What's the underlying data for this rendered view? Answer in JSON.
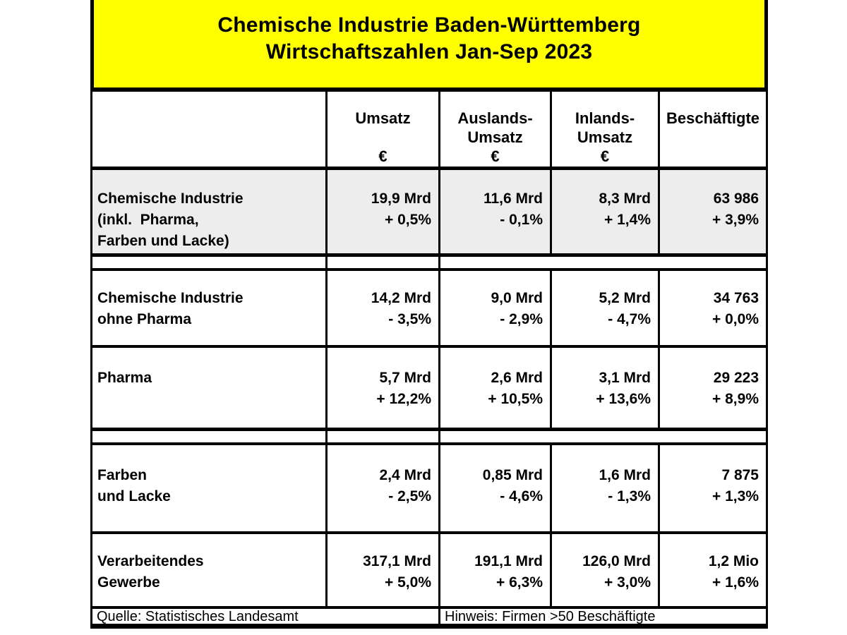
{
  "colors": {
    "title_bg": "#ffff00",
    "row_highlight": "#ededed",
    "border": "#000000"
  },
  "title": {
    "line1": "Chemische Industrie Baden-Württemberg",
    "line2": "Wirtschaftszahlen Jan-Sep 2023"
  },
  "table": {
    "header": {
      "row_label_column": "",
      "columns": [
        "Umsatz\n\n€",
        "Auslands-\nUmsatz\n€",
        "Inlands-\nUmsatz\n€",
        "Beschäftigte"
      ]
    },
    "rows": [
      {
        "label": "Chemische Industrie\n(inkl.  Pharma,\nFarben und Lacke)",
        "highlighted": true,
        "umsatz": "19,9 Mrd\n+ 0,5%",
        "auslands_umsatz": "11,6 Mrd\n- 0,1%",
        "inlands_umsatz": "8,3 Mrd\n+ 1,4%",
        "beschaeftigte": "63 986\n+ 3,9%"
      },
      {
        "label": "Chemische Industrie\nohne Pharma",
        "highlighted": false,
        "umsatz": "14,2 Mrd\n- 3,5%",
        "auslands_umsatz": "9,0 Mrd\n- 2,9%",
        "inlands_umsatz": "5,2 Mrd\n- 4,7%",
        "beschaeftigte": "34 763\n+ 0,0%"
      },
      {
        "label": "Pharma",
        "highlighted": false,
        "umsatz": "5,7 Mrd\n+ 12,2%",
        "auslands_umsatz": "2,6 Mrd\n+ 10,5%",
        "inlands_umsatz": "3,1 Mrd\n+ 13,6%",
        "beschaeftigte": "29 223\n+ 8,9%"
      },
      {
        "label": "Farben\nund Lacke",
        "highlighted": false,
        "umsatz": "2,4 Mrd\n- 2,5%",
        "auslands_umsatz": "0,85 Mrd\n- 4,6%",
        "inlands_umsatz": "1,6 Mrd\n- 1,3%",
        "beschaeftigte": "7 875\n+ 1,3%"
      },
      {
        "label": "Verarbeitendes\nGewerbe",
        "highlighted": false,
        "umsatz": "317,1 Mrd\n+ 5,0%",
        "auslands_umsatz": "191,1 Mrd\n+ 6,3%",
        "inlands_umsatz": "126,0 Mrd\n+ 3,0%",
        "beschaeftigte": "1,2 Mio\n+ 1,6%"
      }
    ],
    "footer": {
      "source": "Quelle: Statistisches Landesamt",
      "note": "Hinweis: Firmen >50 Beschäftigte"
    }
  }
}
